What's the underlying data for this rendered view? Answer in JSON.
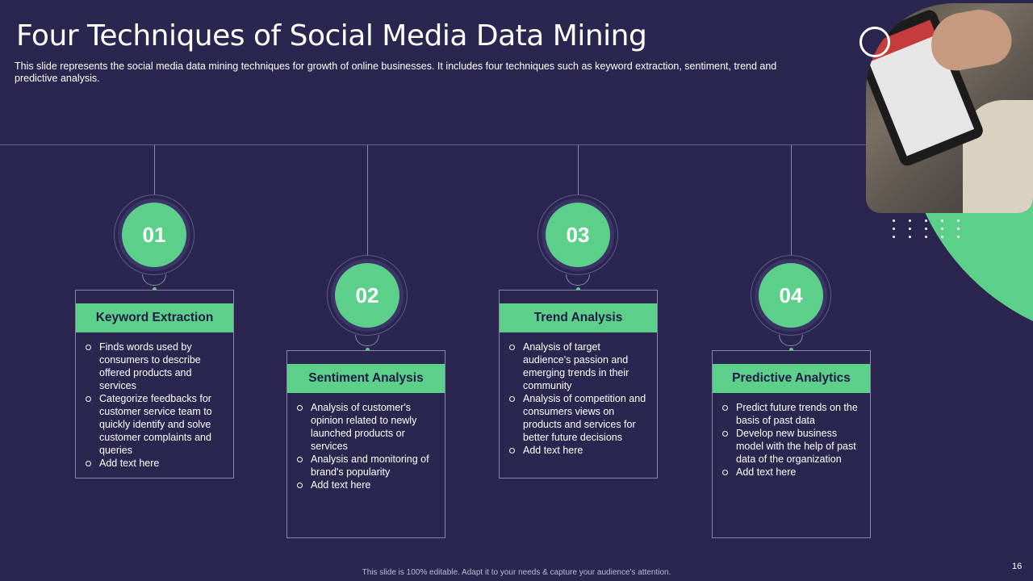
{
  "slide": {
    "title": "Four Techniques of Social Media Data Mining",
    "subtitle": "This slide represents the social media data mining techniques for growth of online businesses. It includes four techniques such as keyword extraction, sentiment, trend and predictive  analysis.",
    "footer": "This slide is 100% editable.  Adapt it to your needs & capture your audience's attention.",
    "page_number": "16"
  },
  "colors": {
    "background": "#2b2650",
    "accent": "#5cd08b",
    "header_text": "#1f1b45"
  },
  "steps": [
    {
      "number": "01",
      "title": "Keyword Extraction",
      "items": [
        "Finds words used by consumers to describe offered  products and services",
        "Categorize feedbacks for customer service team to quickly identify and solve customer complaints and queries",
        "Add text here"
      ]
    },
    {
      "number": "02",
      "title": "Sentiment Analysis",
      "items": [
        "Analysis of customer's opinion related to newly launched products or services",
        "Analysis and monitoring of brand's popularity",
        "Add text here"
      ]
    },
    {
      "number": "03",
      "title": "Trend Analysis",
      "items": [
        "Analysis of target audience's passion and emerging trends in their community",
        "Analysis of competition and consumers views on products and services for better future  decisions",
        "Add text here"
      ]
    },
    {
      "number": "04",
      "title": "Predictive Analytics",
      "items": [
        "Predict future trends on the basis of past data",
        "Develop  new business model with the help of past data of the organization",
        "Add text here"
      ]
    }
  ]
}
